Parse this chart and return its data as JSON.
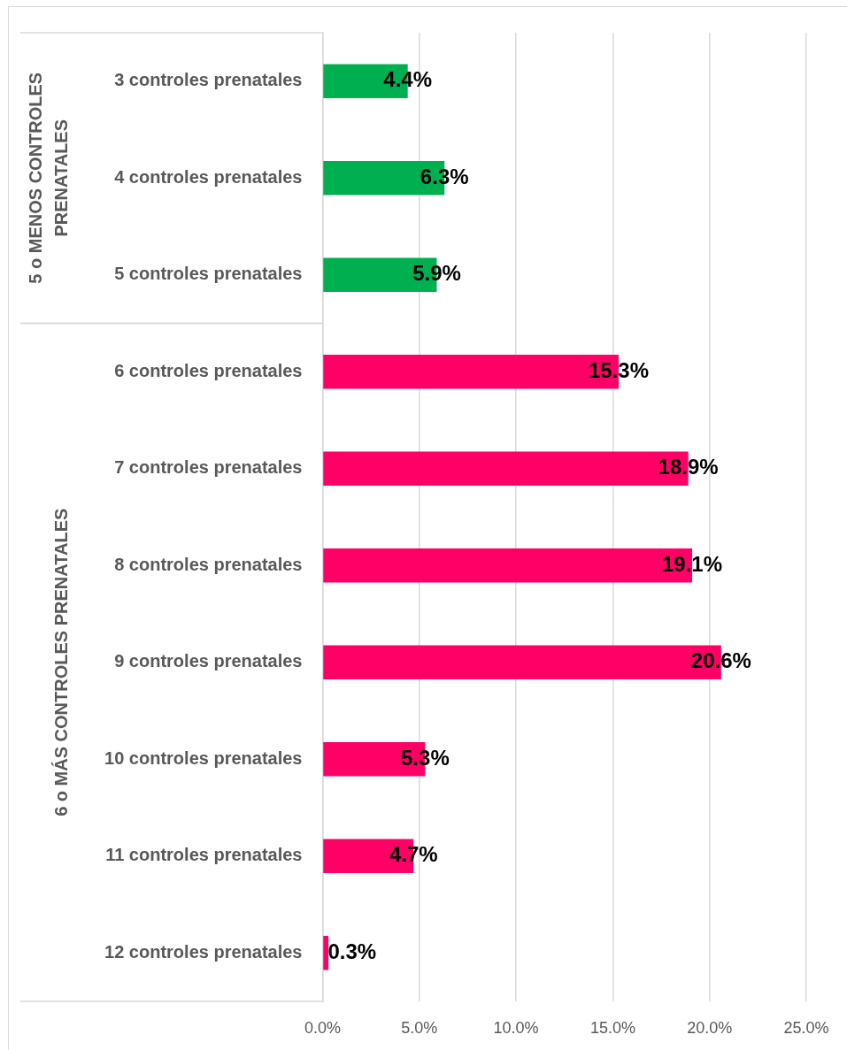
{
  "chart_data": {
    "type": "bar",
    "orientation": "horizontal",
    "categories": [
      "3 controles prenatales",
      "4 controles prenatales",
      "5 controles prenatales",
      "6 controles prenatales",
      "7 controles prenatales",
      "8 controles prenatales",
      "9 controles prenatales",
      "10 controles prenatales",
      "11 controles prenatales",
      "12 controles prenatales"
    ],
    "series": [
      {
        "color": "#00b050",
        "values": [
          4.4,
          6.3,
          5.9,
          null,
          null,
          null,
          null,
          null,
          null,
          null
        ],
        "value_labels": [
          "4.4%",
          "6.3%",
          "5.9%",
          null,
          null,
          null,
          null,
          null,
          null,
          null
        ]
      },
      {
        "color": "#ff0066",
        "values": [
          null,
          null,
          null,
          15.3,
          18.9,
          19.1,
          20.6,
          5.3,
          4.7,
          0.3
        ],
        "value_labels": [
          null,
          null,
          null,
          "15.3%",
          "18.9%",
          "19.1%",
          "20.6%",
          "5.3%",
          "4.7%",
          "0.3%"
        ]
      }
    ],
    "annotations": [
      "5 o MENOS CONTROLES PRENATALES",
      "6 o MÁS CONTROLES PRENATALES"
    ],
    "xlim": [
      0,
      25
    ],
    "xticks": [
      {
        "value": 0,
        "label": "0.0%"
      },
      {
        "value": 5,
        "label": "5.0%"
      },
      {
        "value": 10,
        "label": "10.0%"
      },
      {
        "value": 15,
        "label": "15.0%"
      },
      {
        "value": 20,
        "label": "20.0%"
      },
      {
        "value": 25,
        "label": "25.0%"
      }
    ],
    "grid": "x"
  }
}
